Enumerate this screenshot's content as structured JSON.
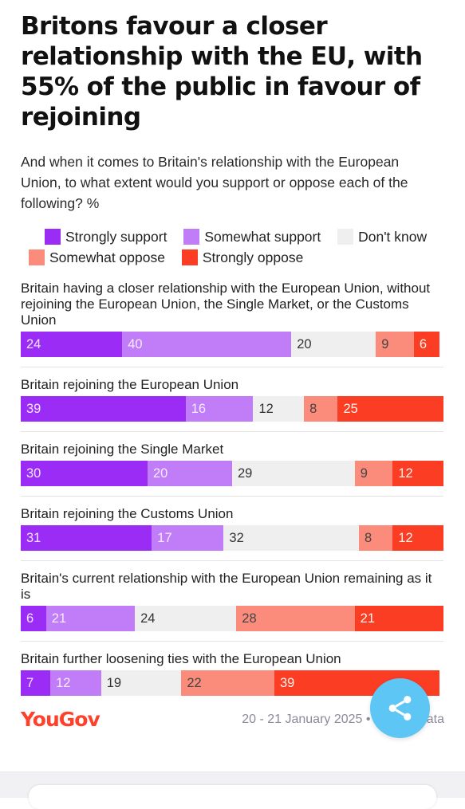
{
  "title": "Britons favour a closer relationship with the EU, with 55% of the public in favour of rejoining",
  "subtitle": "And when it comes to Britain's relationship with the European Union, to what extent would you support or oppose each of the following? %",
  "source": "20 - 21 January 2025 • Get the data",
  "logo": "YouGov",
  "share_icon": "share-icon",
  "colors": {
    "strongly_support": "#9b2cf5",
    "somewhat_support": "#c17cf7",
    "dont_know": "#efefef",
    "somewhat_oppose": "#fb8c7c",
    "strongly_oppose": "#fb3d24",
    "logo": "#ff412c",
    "share_button": "#5ec6f5"
  },
  "chart_data": {
    "type": "bar",
    "orientation": "horizontal",
    "stacked": true,
    "xlim": [
      0,
      100
    ],
    "legend_position": "top",
    "series": [
      {
        "name": "Strongly support",
        "values": [
          24,
          39,
          30,
          31,
          6,
          7
        ]
      },
      {
        "name": "Somewhat support",
        "values": [
          40,
          16,
          20,
          17,
          21,
          12
        ]
      },
      {
        "name": "Don't know",
        "values": [
          20,
          12,
          29,
          32,
          24,
          19
        ]
      },
      {
        "name": "Somewhat oppose",
        "values": [
          9,
          8,
          9,
          8,
          28,
          22
        ]
      },
      {
        "name": "Strongly oppose",
        "values": [
          6,
          25,
          12,
          12,
          21,
          39
        ]
      }
    ],
    "categories": [
      "Britain having a closer relationship with the European Union, without rejoining the European Union, the Single Market, or the Customs Union",
      "Britain rejoining the European Union",
      "Britain rejoining the Single Market",
      "Britain rejoining the Customs Union",
      "Britain's current relationship with the European Union remaining as it is",
      "Britain further loosening ties with the European Union"
    ]
  }
}
